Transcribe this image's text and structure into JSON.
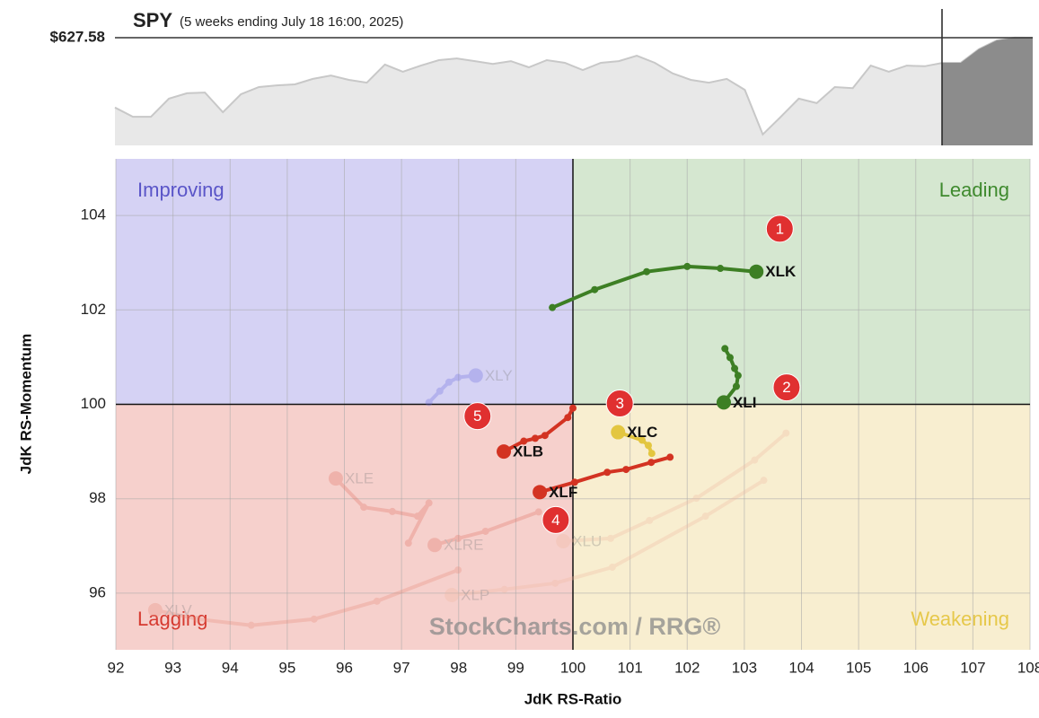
{
  "chart_data": [
    {
      "type": "area",
      "title": "SPY",
      "subtitle": "(5 weeks ending July 18 16:00, 2025)",
      "reference": {
        "value": 627.58,
        "label": "$627.58"
      },
      "ylim": [
        596,
        636
      ],
      "values": [
        607.1,
        604.4,
        604.4,
        609.7,
        611.3,
        611.5,
        605.7,
        611.0,
        613.1,
        613.6,
        613.9,
        615.5,
        616.5,
        615.2,
        614.4,
        619.7,
        617.6,
        619.4,
        621.0,
        621.5,
        620.7,
        619.9,
        620.7,
        618.9,
        621.0,
        620.2,
        618.1,
        620.2,
        620.7,
        622.3,
        620.2,
        617.1,
        615.2,
        614.4,
        615.5,
        612.3,
        599.2,
        604.4,
        609.7,
        608.4,
        613.1,
        612.8,
        619.4,
        617.6,
        619.4,
        619.2,
        620.2,
        620.2,
        624.2,
        626.8,
        627.6,
        627.58
      ],
      "color": "#c8c8c8"
    },
    {
      "type": "rrg",
      "xlabel": "JdK RS-Ratio",
      "ylabel": "JdK RS-Momentum",
      "xlim": [
        92,
        108
      ],
      "ylim": [
        94.8,
        105.2
      ],
      "xticks": [
        92,
        93,
        94,
        95,
        96,
        97,
        98,
        99,
        100,
        101,
        102,
        103,
        104,
        105,
        106,
        107,
        108
      ],
      "yticks": [
        96,
        98,
        100,
        102,
        104
      ],
      "center": [
        100,
        100
      ],
      "grid": true,
      "quadrants": [
        {
          "name": "Improving",
          "color": "#d5d2f4",
          "text_color": "#5a55c8"
        },
        {
          "name": "Leading",
          "color": "#d5e7d0",
          "text_color": "#3f8a2e"
        },
        {
          "name": "Lagging",
          "color": "#f6d0cc",
          "text_color": "#d63a30"
        },
        {
          "name": "Weakening",
          "color": "#f8eed0",
          "text_color": "#e6c84a"
        }
      ],
      "watermark": "StockCharts.com / RRG®",
      "series": [
        {
          "name": "XLY",
          "color": "#6a6ae0",
          "highlighted": false,
          "x": [
            97.48,
            97.67,
            97.83,
            97.99,
            98.3
          ],
          "y": [
            100.04,
            100.28,
            100.47,
            100.57,
            100.61
          ]
        },
        {
          "name": "XLE",
          "color": "#e07060",
          "highlighted": false,
          "x": [
            97.12,
            97.48,
            97.28,
            96.84,
            96.34,
            95.85
          ],
          "y": [
            97.06,
            97.91,
            97.63,
            97.73,
            97.82,
            98.43
          ]
        },
        {
          "name": "XLRE",
          "color": "#e07060",
          "highlighted": false,
          "x": [
            99.4,
            98.47,
            97.99,
            97.58
          ],
          "y": [
            97.72,
            97.31,
            97.16,
            97.02
          ]
        },
        {
          "name": "XLU",
          "color": "#f0b8a0",
          "highlighted": false,
          "x": [
            103.73,
            103.18,
            102.16,
            101.34,
            100.66,
            99.83
          ],
          "y": [
            99.39,
            98.82,
            98.01,
            97.54,
            97.16,
            97.1
          ]
        },
        {
          "name": "XLP",
          "color": "#f0b8a0",
          "highlighted": false,
          "x": [
            103.34,
            102.32,
            100.69,
            99.69,
            98.8,
            97.88
          ],
          "y": [
            98.39,
            97.63,
            96.55,
            96.21,
            96.08,
            95.96
          ]
        },
        {
          "name": "XLV",
          "color": "#e88878",
          "highlighted": false,
          "x": [
            97.99,
            96.57,
            95.47,
            94.37,
            93.43,
            92.69
          ],
          "y": [
            96.49,
            95.83,
            95.45,
            95.32,
            95.45,
            95.64
          ]
        },
        {
          "name": "XLK",
          "color": "#3d7f24",
          "highlighted": true,
          "x": [
            99.64,
            100.38,
            101.29,
            102.0,
            102.58,
            103.21
          ],
          "y": [
            102.05,
            102.43,
            102.81,
            102.92,
            102.88,
            102.81
          ]
        },
        {
          "name": "XLI",
          "color": "#3d7f24",
          "highlighted": true,
          "x": [
            102.66,
            102.75,
            102.83,
            102.89,
            102.86,
            102.64
          ],
          "y": [
            101.18,
            100.99,
            100.76,
            100.61,
            100.38,
            100.04
          ]
        },
        {
          "name": "XLC",
          "color": "#e3c640",
          "highlighted": true,
          "x": [
            101.38,
            101.32,
            101.21,
            100.79
          ],
          "y": [
            98.96,
            99.13,
            99.24,
            99.41
          ]
        },
        {
          "name": "XLB",
          "color": "#d33322",
          "highlighted": true,
          "x": [
            100.0,
            99.91,
            99.51,
            99.34,
            99.14,
            98.79
          ],
          "y": [
            99.92,
            99.72,
            99.34,
            99.28,
            99.22,
            99.0
          ]
        },
        {
          "name": "XLF",
          "color": "#d33322",
          "highlighted": true,
          "x": [
            101.7,
            101.37,
            100.93,
            100.6,
            100.03,
            99.42
          ],
          "y": [
            98.88,
            98.77,
            98.62,
            98.56,
            98.35,
            98.14
          ]
        }
      ],
      "annotations": [
        {
          "text": "1",
          "x": 103.62,
          "y": 103.72
        },
        {
          "text": "2",
          "x": 103.74,
          "y": 100.36
        },
        {
          "text": "3",
          "x": 100.82,
          "y": 100.02
        },
        {
          "text": "4",
          "x": 99.7,
          "y": 97.55
        },
        {
          "text": "5",
          "x": 98.33,
          "y": 99.75
        }
      ],
      "annotation_color": "#e03030"
    }
  ]
}
